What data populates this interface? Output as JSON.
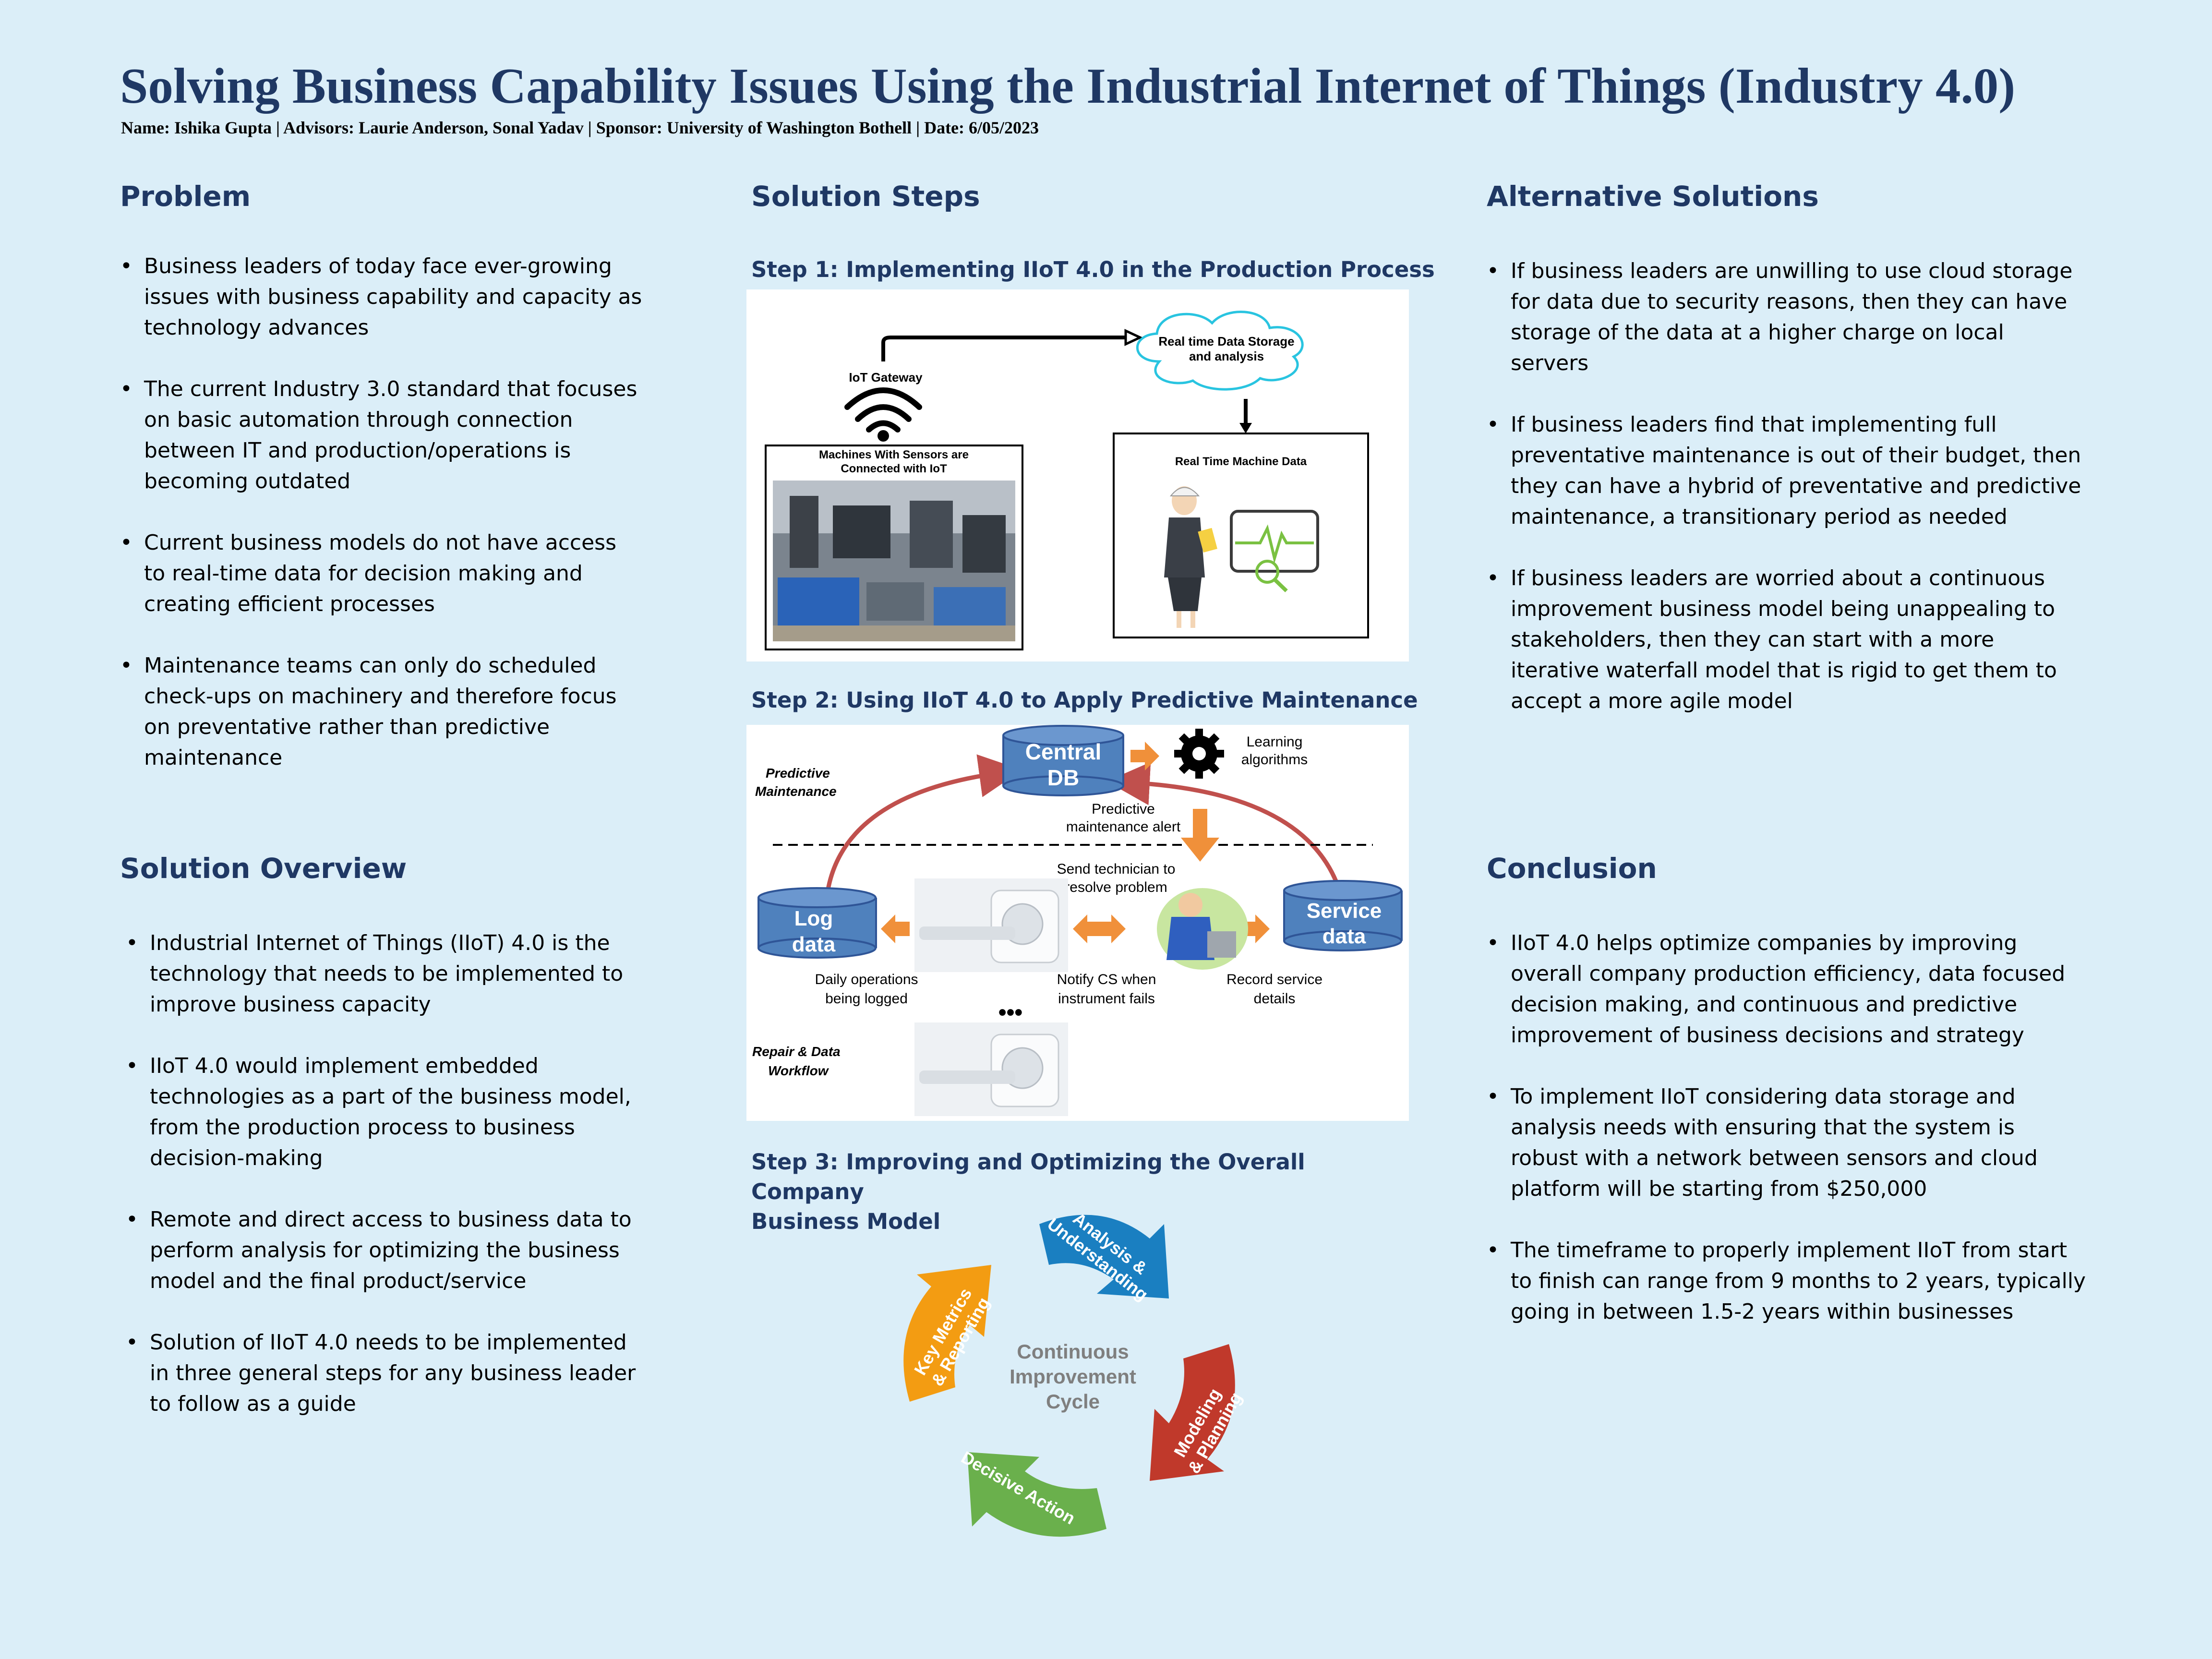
{
  "poster": {
    "title": "Solving Business Capability Issues Using the Industrial Internet of Things (Industry 4.0)",
    "byline": "Name: Ishika Gupta | Advisors: Laurie Anderson, Sonal Yadav | Sponsor: University of Washington Bothell | Date: 6/05/2023"
  },
  "problem": {
    "heading": "Problem",
    "bullets": [
      "Business leaders of today face ever-growing issues with business capability and capacity as technology advances",
      "The current Industry 3.0 standard that focuses on basic automation through connection between IT and production/operations is becoming outdated",
      "Current business models do not have access to real-time data for decision making and creating efficient processes",
      "Maintenance teams can only do scheduled check-ups on machinery and therefore focus on preventative rather than predictive maintenance"
    ]
  },
  "solution_overview": {
    "heading": "Solution Overview",
    "bullets": [
      "Industrial Internet of Things (IIoT) 4.0 is the technology that needs to be implemented to improve business capacity",
      "IIoT 4.0 would implement embedded technologies as a part of the business model, from the production process to business decision-making",
      "Remote and direct access to business data to perform analysis for optimizing the business model and the final product/service",
      "Solution of IIoT 4.0 needs to be implemented in three general steps for any business leader to follow as a guide"
    ]
  },
  "solution_steps": {
    "heading": "Solution Steps",
    "step1": {
      "title": "Step 1: Implementing IIoT 4.0 in the Production Process",
      "gateway": "IoT Gateway",
      "cloud_line1": "Real time Data Storage",
      "cloud_line2": "and analysis",
      "machines_line1": "Machines With Sensors are",
      "machines_line2": "Connected with IoT",
      "rt_data": "Real Time Machine Data"
    },
    "step2": {
      "title": "Step 2: Using IIoT 4.0 to Apply Predictive Maintenance",
      "pm_line1": "Predictive",
      "pm_line2": "Maintenance",
      "central_line1": "Central",
      "central_line2": "DB",
      "learn_line1": "Learning",
      "learn_line2": "algorithms",
      "alert_line1": "Predictive",
      "alert_line2": "maintenance alert",
      "tech_line1": "Send technician to",
      "tech_line2": "resolve problem",
      "log_line1": "Log",
      "log_line2": "data",
      "service_line1": "Service",
      "service_line2": "data",
      "daily_line1": "Daily operations",
      "daily_line2": "being logged",
      "notify_line1": "Notify CS when",
      "notify_line2": "instrument fails",
      "record_line1": "Record service",
      "record_line2": "details",
      "ellipsis": "•••",
      "repair_line1": "Repair & Data",
      "repair_line2": "Workflow"
    },
    "step3": {
      "title_line1": "Step 3: Improving and Optimizing the Overall Company",
      "title_line2": "Business Model",
      "center_line1": "Continuous",
      "center_line2": "Improvement",
      "center_line3": "Cycle",
      "seg_analysis_1": "Analysis &",
      "seg_analysis_2": "Understanding",
      "seg_modeling_1": "Modeling",
      "seg_modeling_2": "& Planning",
      "seg_decisive": "Decisive Action",
      "seg_key_1": "Key Metrics",
      "seg_key_2": "& Reporting"
    }
  },
  "alternative_solutions": {
    "heading": "Alternative Solutions",
    "bullets": [
      "If business leaders are unwilling to use cloud storage for data due to security reasons, then they can have storage of the data at a higher charge on local servers",
      "If business leaders find that implementing full preventative maintenance is out of their budget, then they can have a hybrid of preventative and predictive maintenance, a transitionary period as needed",
      "If business leaders are worried about a continuous improvement business model being unappealing to stakeholders, then they can start with a more iterative waterfall model that is rigid to get them to accept a more agile model"
    ]
  },
  "conclusion": {
    "heading": "Conclusion",
    "bullets": [
      "IIoT 4.0 helps optimize companies by improving overall company production efficiency, data focused decision making, and continuous and predictive improvement of business decisions and strategy",
      "To implement IIoT considering data storage and analysis needs with ensuring that the system is robust with a network between sensors and cloud platform will be starting from $250,000",
      "The timeframe to properly implement IIoT  from start to finish can range from 9 months to 2 years, typically going in between 1.5-2 years within businesses"
    ]
  },
  "colors": {
    "background": "#dbeef8",
    "heading": "#1f3864",
    "db_blue": "#4f81bd",
    "arrow_orange": "#f0903a",
    "cycle_blue": "#1f77b4",
    "cycle_red": "#c0392b",
    "cycle_green": "#6ab04c",
    "cycle_orange": "#f39c12"
  }
}
